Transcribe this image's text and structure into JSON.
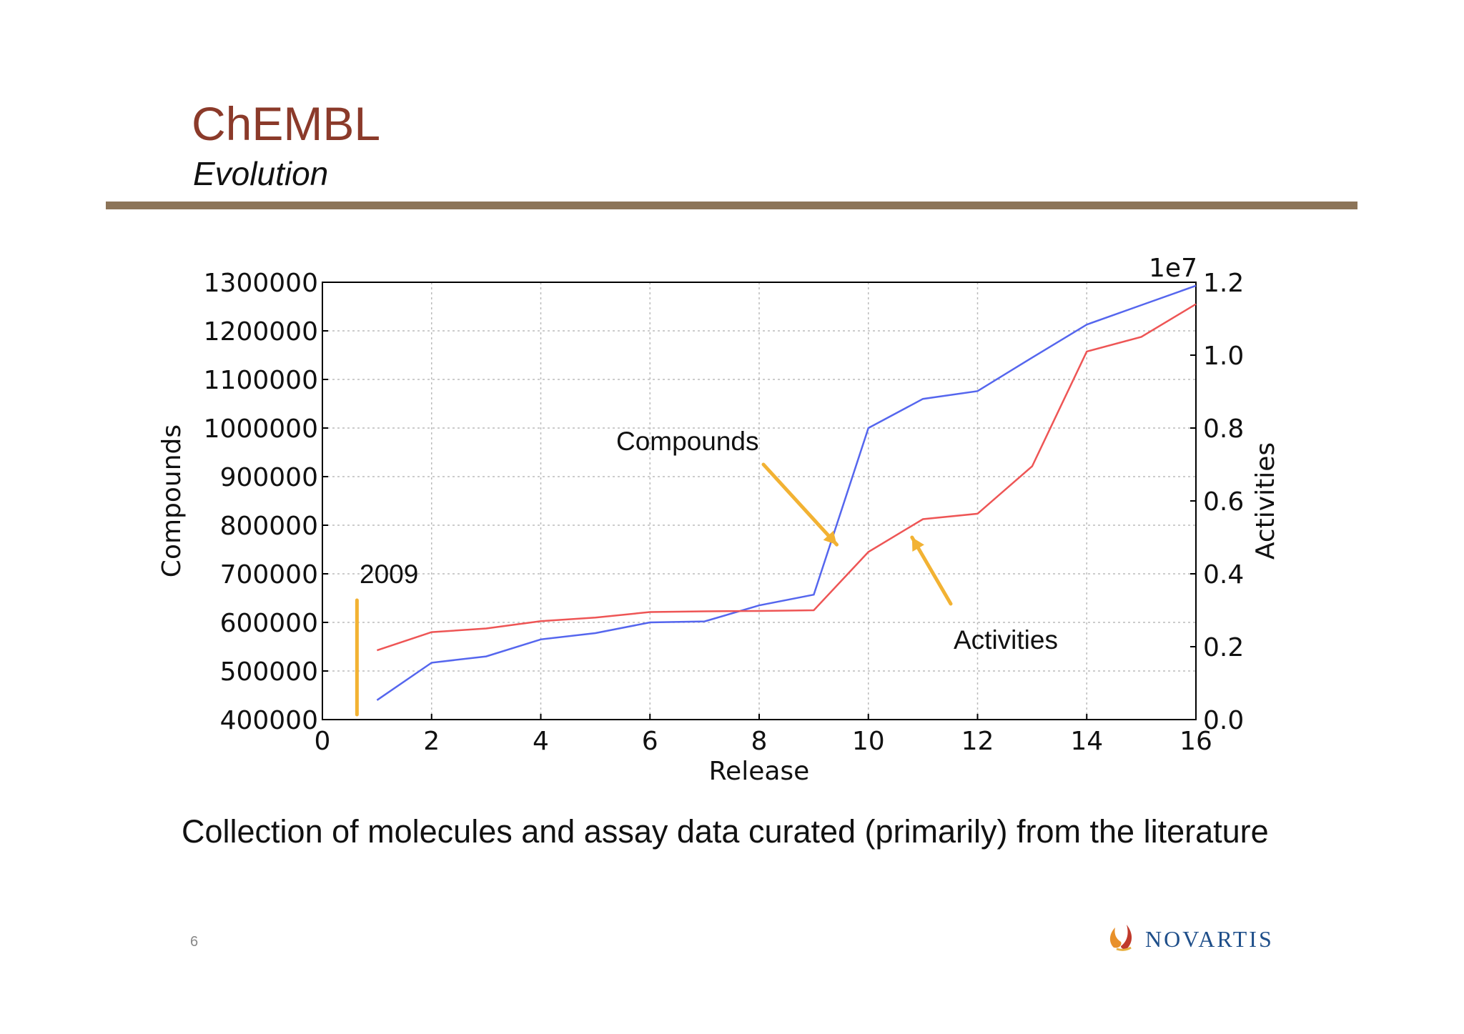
{
  "slide": {
    "title": "ChEMBL",
    "subtitle": "Evolution",
    "caption": "Collection of molecules and assay data curated (primarily) from the literature",
    "page_number": "6",
    "logo_text": "NOVARTIS"
  },
  "colors": {
    "title": "#8B3A2A",
    "rule": "#8C7458",
    "compounds_line": "#5566EE",
    "activities_line": "#EE5555",
    "annotation_arrow": "#F2B233"
  },
  "chart_data": {
    "type": "line",
    "title": "",
    "xlabel": "Release",
    "ylabel_left": "Compounds",
    "ylabel_right": "Activities",
    "right_axis_multiplier": "1e7",
    "xlim": [
      0,
      16
    ],
    "ylim_left": [
      400000,
      1300000
    ],
    "ylim_right": [
      0.0,
      1.2
    ],
    "x_ticks": [
      0,
      2,
      4,
      6,
      8,
      10,
      12,
      14,
      16
    ],
    "y_left_ticks": [
      400000,
      500000,
      600000,
      700000,
      800000,
      900000,
      1000000,
      1100000,
      1200000,
      1300000
    ],
    "y_right_ticks": [
      "0.0",
      "0.2",
      "0.4",
      "0.6",
      "0.8",
      "1.0",
      "1.2"
    ],
    "grid": true,
    "series": [
      {
        "name": "Compounds",
        "axis": "left",
        "x": [
          1,
          2,
          3,
          4,
          5,
          6,
          7,
          8,
          9,
          10,
          11,
          12,
          13,
          14,
          15,
          16
        ],
        "values": [
          440000,
          517000,
          530000,
          565000,
          578000,
          600000,
          602000,
          635000,
          657000,
          1000000,
          1060000,
          1076000,
          1145000,
          1213000,
          1253000,
          1293000
        ]
      },
      {
        "name": "Activities",
        "axis": "right",
        "x": [
          1,
          2,
          3,
          4,
          5,
          6,
          7,
          8,
          9,
          10,
          11,
          12,
          13,
          14,
          15,
          16
        ],
        "values": [
          0.19,
          0.24,
          0.25,
          0.27,
          0.28,
          0.295,
          0.297,
          0.298,
          0.3,
          0.46,
          0.55,
          0.565,
          0.695,
          1.01,
          1.05,
          1.14
        ]
      }
    ],
    "annotations": [
      {
        "text": "Compounds",
        "points_to_x": 9.5
      },
      {
        "text": "Activities",
        "points_to_x": 10.8
      },
      {
        "text": "2009",
        "marks_x": 1
      }
    ]
  }
}
